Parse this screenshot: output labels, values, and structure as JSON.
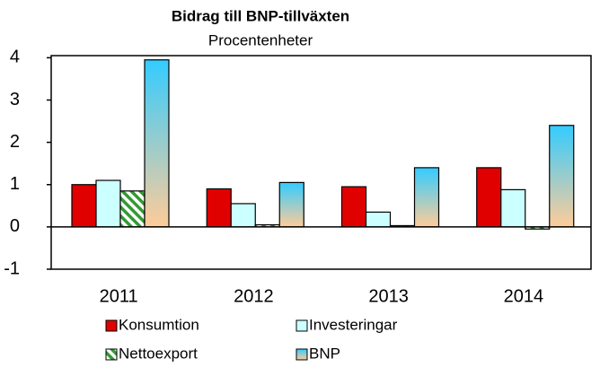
{
  "chart_data": {
    "type": "bar",
    "title": "Bidrag till BNP-tillväxten",
    "subtitle": "Procentenheter",
    "categories": [
      "2011",
      "2012",
      "2013",
      "2014"
    ],
    "series": [
      {
        "name": "Konsumtion",
        "color": "#e00000",
        "values": [
          1.0,
          0.9,
          0.95,
          1.4
        ]
      },
      {
        "name": "Investeringar",
        "color": "#ccffff",
        "values": [
          1.1,
          0.55,
          0.35,
          0.88
        ]
      },
      {
        "name": "Nettoexport",
        "color": "#339933",
        "values": [
          0.85,
          0.05,
          0.03,
          -0.05
        ]
      },
      {
        "name": "BNP",
        "color": "#33ccff",
        "values": [
          3.95,
          1.05,
          1.4,
          2.4
        ]
      }
    ],
    "ylim": [
      -1,
      4.05
    ],
    "yticks": [
      -1,
      0,
      1,
      2,
      3,
      4
    ]
  }
}
